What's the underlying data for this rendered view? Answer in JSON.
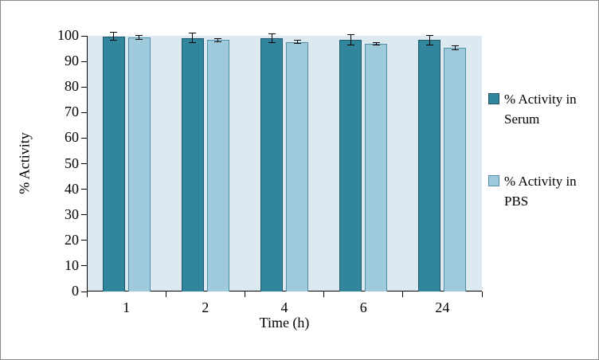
{
  "chart_data": {
    "type": "bar",
    "xlabel": "Time (h)",
    "ylabel": "% Activity",
    "categories": [
      "1",
      "2",
      "4",
      "6",
      "24"
    ],
    "series": [
      {
        "name": "% Activity in Serum",
        "color": "#31859c",
        "border_color": "#20586b",
        "values": [
          99.8,
          99.2,
          99.0,
          98.5,
          98.3
        ],
        "errors": [
          1.5,
          1.8,
          1.8,
          2.0,
          2.0
        ]
      },
      {
        "name": "% Activity in PBS",
        "color": "#9ecadb",
        "border_color": "#4f90a8",
        "values": [
          99.4,
          98.4,
          97.6,
          96.9,
          95.4
        ],
        "errors": [
          0.8,
          0.6,
          0.6,
          0.6,
          0.8
        ]
      }
    ],
    "ylim": [
      0,
      100
    ],
    "yticks": [
      0,
      10,
      20,
      30,
      40,
      50,
      60,
      70,
      80,
      90,
      100
    ],
    "plot_background": "#dce9f1",
    "legend_position": "right",
    "grid": false
  }
}
